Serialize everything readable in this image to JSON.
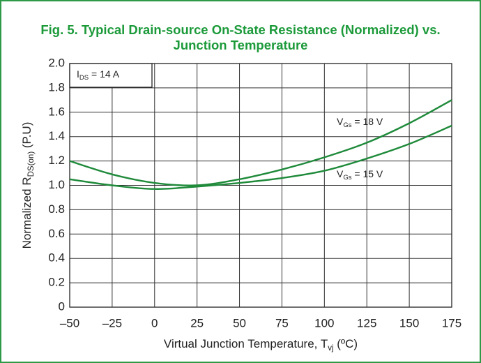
{
  "chart_data": {
    "type": "line",
    "title": [
      "Fig. 5. Typical Drain-source On-State Resistance (Normalized) vs.",
      "Junction Temperature"
    ],
    "x_label": [
      "Virtual Junction Temperature, T",
      "vj",
      " (ºC)"
    ],
    "y_label": [
      "Normalized R",
      "DS(on)",
      " (P.U)"
    ],
    "annotation": [
      "I",
      "DS",
      " = 14 A"
    ],
    "x": [
      -50,
      -25,
      0,
      25,
      50,
      75,
      100,
      125,
      150,
      175
    ],
    "series": [
      {
        "name": [
          "V",
          "Gs",
          " = 18 V"
        ],
        "color": "#1e8a3a",
        "values": [
          1.2,
          1.09,
          1.02,
          1.0,
          1.05,
          1.13,
          1.23,
          1.35,
          1.51,
          1.7
        ]
      },
      {
        "name": [
          "V",
          "Gs",
          " = 15 V"
        ],
        "color": "#1e8a3a",
        "values": [
          1.05,
          1.0,
          0.97,
          0.99,
          1.02,
          1.06,
          1.12,
          1.22,
          1.34,
          1.49
        ]
      }
    ],
    "xlim": [
      -50,
      175
    ],
    "xticks": [
      {
        "value": -50,
        "label": "–50"
      },
      {
        "value": -25,
        "label": "–25"
      },
      0,
      25,
      50,
      75,
      100,
      125,
      150,
      175
    ],
    "ylim": [
      0,
      2.0
    ],
    "yticks": [
      0,
      0.2,
      0.4,
      0.6,
      0.8,
      {
        "value": 1.0,
        "label": "1.0"
      },
      1.2,
      1.4,
      1.6,
      1.8,
      {
        "value": 2.0,
        "label": "2.0"
      }
    ],
    "grid": true
  }
}
